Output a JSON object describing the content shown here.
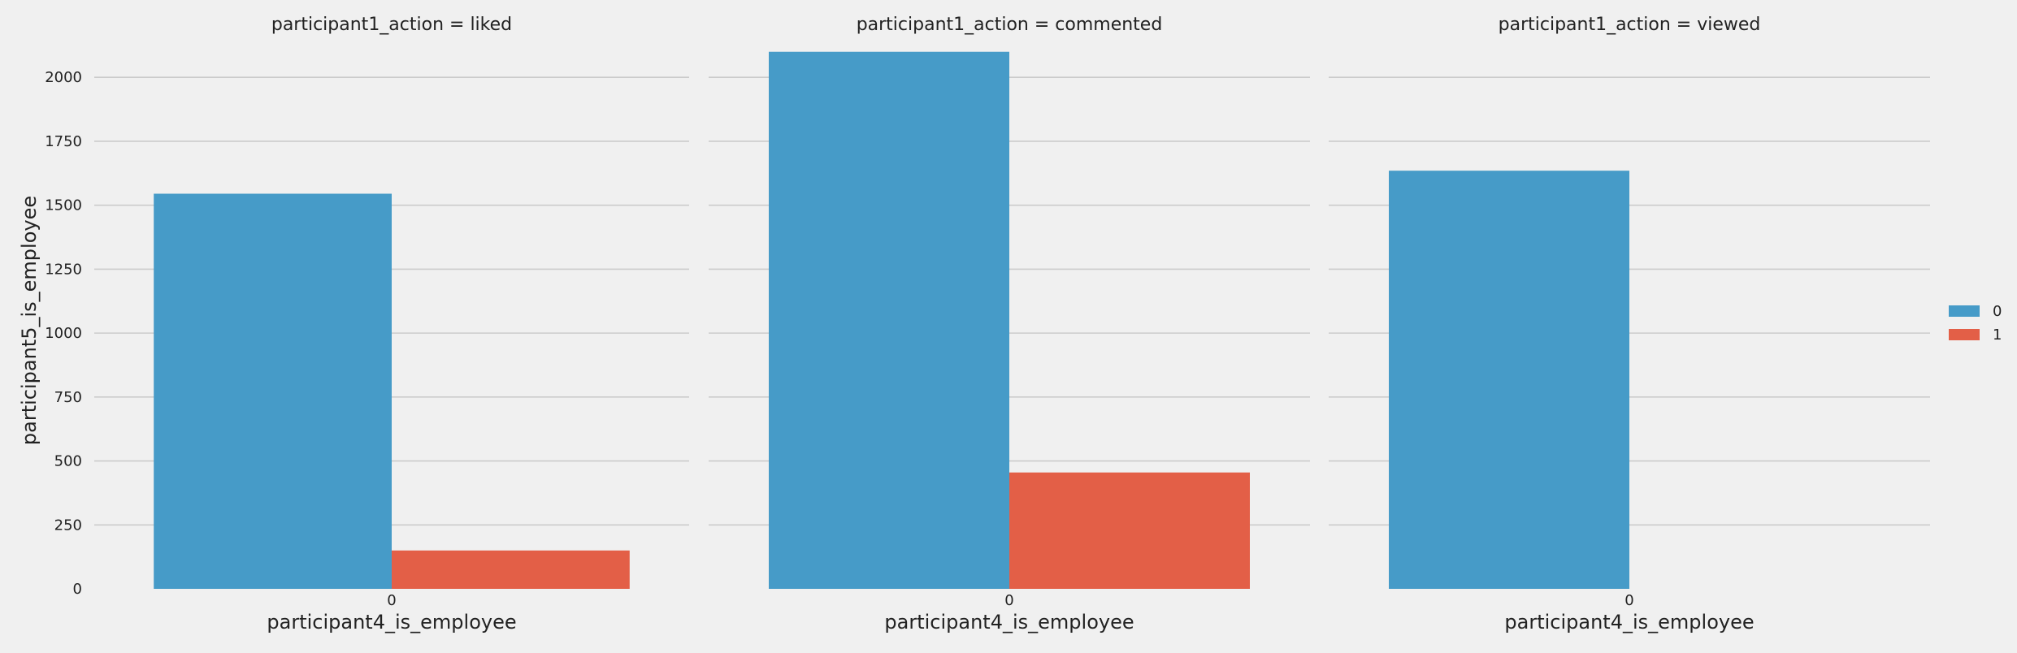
{
  "chart_data": {
    "type": "bar",
    "facet_by": "participant1_action",
    "xlabel": "participant4_is_employee",
    "ylabel": "participant5_is_employee",
    "ylim": [
      0,
      2150
    ],
    "yticks": [
      0,
      250,
      500,
      750,
      1000,
      1250,
      1500,
      1750,
      2000
    ],
    "grid": true,
    "legend_position": "right",
    "hue_levels": [
      "0",
      "1"
    ],
    "colors": {
      "0": "#469bc8",
      "1": "#e35f47"
    },
    "panels": [
      {
        "title": "participant1_action = liked",
        "categories": [
          "0"
        ],
        "series": [
          {
            "name": "0",
            "values": [
              1545
            ]
          },
          {
            "name": "1",
            "values": [
              150
            ]
          }
        ]
      },
      {
        "title": "participant1_action = commented",
        "categories": [
          "0"
        ],
        "series": [
          {
            "name": "0",
            "values": [
              2100
            ]
          },
          {
            "name": "1",
            "values": [
              455
            ]
          }
        ]
      },
      {
        "title": "participant1_action = viewed",
        "categories": [
          "0"
        ],
        "series": [
          {
            "name": "0",
            "values": [
              1635
            ]
          }
        ]
      }
    ]
  }
}
